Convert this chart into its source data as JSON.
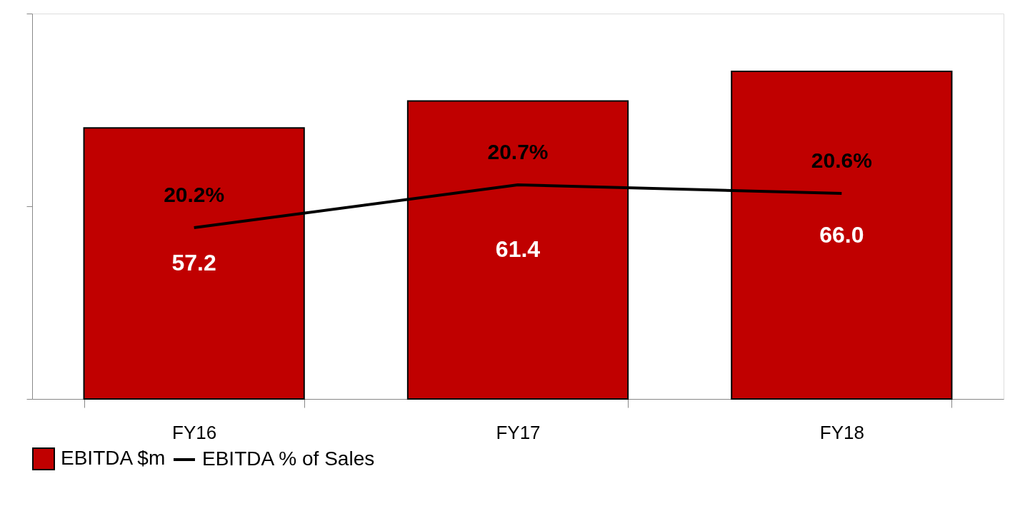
{
  "chart_data": {
    "type": "bar",
    "categories": [
      "FY16",
      "FY17",
      "FY18"
    ],
    "series": [
      {
        "name": "EBITDA $m",
        "color": "#c00000",
        "values": [
          57.2,
          61.4,
          66.0
        ],
        "value_labels": [
          "57.2",
          "61.4",
          "66.0"
        ]
      },
      {
        "name": "EBITDA % of Sales",
        "type": "line",
        "axis": "y2",
        "color": "#000000",
        "values": [
          20.2,
          20.7,
          20.6
        ],
        "value_labels": [
          "20.2%",
          "20.7%",
          "20.6%"
        ]
      }
    ],
    "ylim": [
      15,
      75
    ],
    "yticks": [
      {
        "value": 15,
        "label": null
      },
      {
        "value": 45,
        "label": null
      },
      {
        "value": 75,
        "label": null
      }
    ],
    "tick_labels": "x",
    "legend": "bottom",
    "grid": false,
    "marker": "none",
    "line_style": "solid"
  }
}
